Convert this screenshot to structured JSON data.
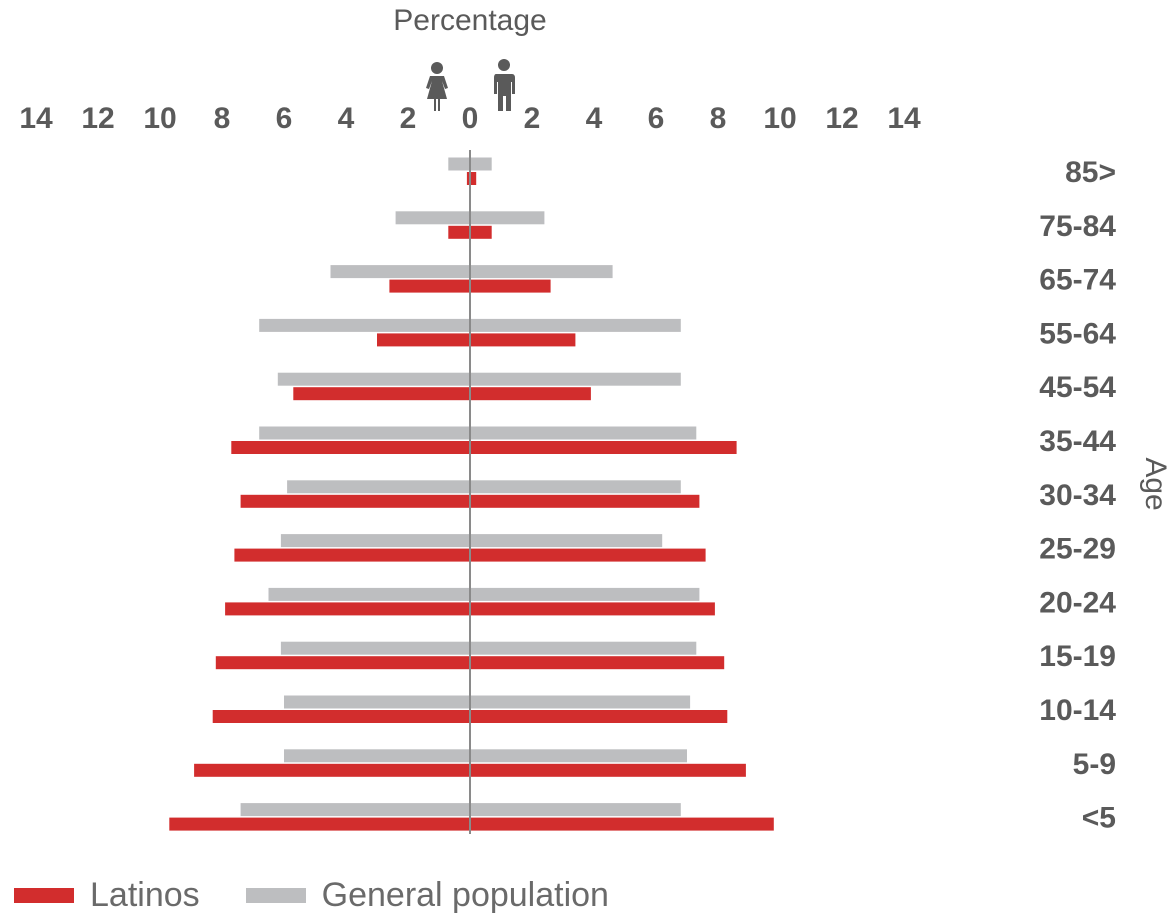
{
  "chart_data": {
    "type": "bar",
    "subtype": "population-pyramid",
    "xlabel": "Percentage",
    "ylabel": "Age",
    "xlim": [
      -14,
      14
    ],
    "x_ticks": [
      "14",
      "12",
      "10",
      "8",
      "6",
      "4",
      "2",
      "0",
      "2",
      "4",
      "6",
      "8",
      "10",
      "12",
      "14"
    ],
    "left_side": "female",
    "right_side": "male",
    "categories": [
      "85>",
      "75-84",
      "65-74",
      "55-64",
      "45-54",
      "35-44",
      "30-34",
      "25-29",
      "20-24",
      "15-19",
      "10-14",
      "5-9",
      "<5"
    ],
    "series": [
      {
        "name": "Latinos",
        "color": "#d22d2d",
        "female": [
          0.1,
          0.7,
          2.6,
          3.0,
          5.7,
          7.7,
          7.4,
          7.6,
          7.9,
          8.2,
          8.3,
          8.9,
          9.7
        ],
        "male": [
          0.2,
          0.7,
          2.6,
          3.4,
          3.9,
          8.6,
          7.4,
          7.6,
          7.9,
          8.2,
          8.3,
          8.9,
          9.8
        ]
      },
      {
        "name": "General population",
        "color": "#bdbec0",
        "female": [
          0.7,
          2.4,
          4.5,
          6.8,
          6.2,
          6.8,
          5.9,
          6.1,
          6.5,
          6.1,
          6.0,
          6.0,
          7.4
        ],
        "male": [
          0.7,
          2.4,
          4.6,
          6.8,
          6.8,
          7.3,
          6.8,
          6.2,
          7.4,
          7.3,
          7.1,
          7.0,
          6.8
        ]
      }
    ],
    "legend": {
      "position": "bottom-left"
    },
    "grid": false
  }
}
